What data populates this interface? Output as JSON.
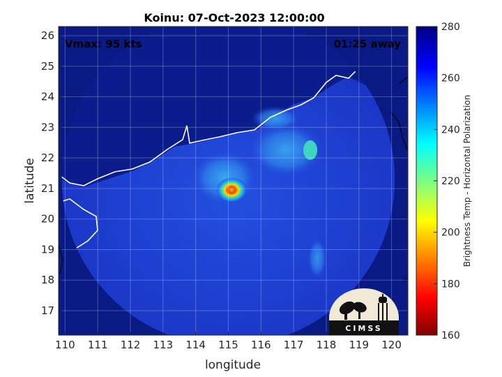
{
  "chart_data": {
    "type": "heatmap",
    "title": "Koinu: 07-Oct-2023 12:00:00",
    "xlabel": "longitude",
    "ylabel": "latitude",
    "xlim": [
      109.8,
      120.5
    ],
    "ylim": [
      16.2,
      26.3
    ],
    "xticks": [
      "110",
      "111",
      "112",
      "113",
      "114",
      "115",
      "116",
      "117",
      "118",
      "119",
      "120"
    ],
    "yticks": [
      "17",
      "18",
      "19",
      "20",
      "21",
      "22",
      "23",
      "24",
      "25",
      "26"
    ],
    "grid": true,
    "annotations": {
      "vmax": "Vmax: 95 kts",
      "away": "01:25 away"
    },
    "storm_center": {
      "lon": 115.1,
      "lat": 20.95
    },
    "swath": {
      "center_lon": 115.0,
      "center_lat": 21.3,
      "radius_deg": 5.1
    },
    "colorbar": {
      "label": "Brightness Temp - Horizontal Polarization",
      "min": 160,
      "max": 280,
      "ticks": [
        "160",
        "180",
        "200",
        "220",
        "240",
        "260",
        "280"
      ],
      "colormap": "jet"
    },
    "logo": "CIMSS"
  },
  "colors": {
    "background_field": "#0a1a84",
    "ocean": "#1f3fd6",
    "coastline": "#ffffff",
    "outside_coast": "#000000"
  }
}
